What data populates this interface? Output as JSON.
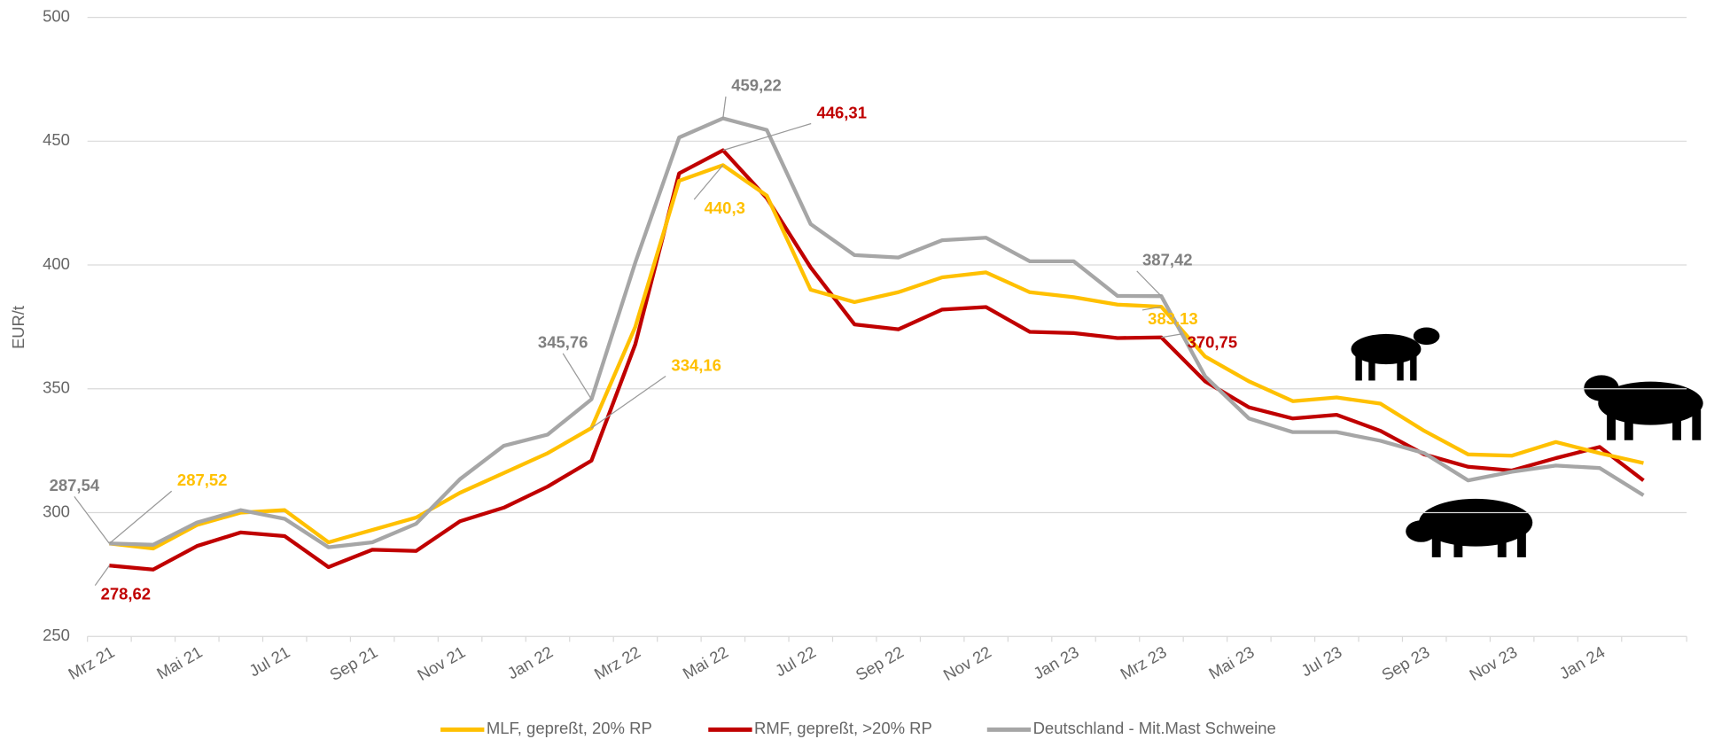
{
  "chart_data": {
    "type": "line",
    "y_label": "EUR/t",
    "categories": [
      "Mrz 21",
      null,
      "Mai 21",
      null,
      "Jul 21",
      null,
      "Sep 21",
      null,
      "Nov 21",
      null,
      "Jan 22",
      null,
      "Mrz 22",
      null,
      "Mai 22",
      null,
      "Jul 22",
      null,
      "Sep 22",
      null,
      "Nov 22",
      null,
      "Jan 23",
      null,
      "Mrz 23",
      null,
      "Mai 23",
      null,
      "Jul 23",
      null,
      "Sep 23",
      null,
      "Nov 23",
      null,
      "Jan 24",
      null
    ],
    "ylim": [
      250,
      500
    ],
    "yticks": [
      250,
      300,
      350,
      400,
      450,
      500
    ],
    "grid": true,
    "legend": "bottom",
    "series": [
      {
        "name": "MLF, gepreßt, 20% RP",
        "color": "#FFC000",
        "values": [
          287.52,
          285.5,
          295,
          300,
          301,
          288,
          293,
          298,
          308,
          316,
          324,
          334.16,
          375,
          434,
          440.3,
          428,
          390,
          385,
          389,
          395,
          397,
          389,
          387,
          384,
          383.13,
          363,
          353,
          345,
          346.5,
          344,
          333,
          323.5,
          323,
          328.5,
          324,
          320
        ],
        "value_labels": [
          "287,52",
          null,
          null,
          null,
          null,
          null,
          null,
          null,
          null,
          null,
          null,
          "334,16",
          null,
          null,
          "440,3",
          null,
          null,
          null,
          null,
          null,
          null,
          null,
          null,
          null,
          "383,13",
          null,
          null,
          null,
          null,
          null,
          null,
          null,
          null,
          null,
          null,
          null
        ]
      },
      {
        "name": "RMF, gepreßt, >20% RP",
        "color": "#C00000",
        "values": [
          278.62,
          277,
          286.5,
          292,
          290.5,
          278,
          285,
          284.5,
          296.5,
          302,
          310.5,
          321,
          368,
          437,
          446.31,
          427,
          399,
          376,
          374,
          382,
          383,
          373,
          372.5,
          370.5,
          370.75,
          353,
          342.5,
          338,
          339.5,
          333,
          323.5,
          318.5,
          317,
          322,
          326.5,
          313
        ],
        "value_labels": [
          "278,62",
          null,
          null,
          null,
          null,
          null,
          null,
          null,
          null,
          null,
          null,
          null,
          null,
          null,
          "446,31",
          null,
          null,
          null,
          null,
          null,
          null,
          null,
          null,
          null,
          "370,75",
          null,
          null,
          null,
          null,
          null,
          null,
          null,
          null,
          null,
          null,
          null
        ]
      },
      {
        "name": "Deutschland - Mit.Mast Schweine",
        "color": "#A6A6A6",
        "values": [
          287.54,
          287,
          296,
          301,
          297.5,
          286,
          288,
          295.5,
          313.5,
          327,
          331.5,
          345.76,
          401,
          451.5,
          459.22,
          454.5,
          416.5,
          404,
          403,
          410,
          411,
          401.5,
          401.5,
          387.5,
          387.42,
          355,
          338,
          332.5,
          332.5,
          329,
          324,
          313,
          316.5,
          319,
          318,
          307
        ],
        "value_labels": [
          "287,54",
          null,
          null,
          null,
          null,
          null,
          null,
          null,
          null,
          null,
          null,
          "345,76",
          null,
          null,
          "459,22",
          null,
          null,
          null,
          null,
          null,
          null,
          null,
          null,
          null,
          "387,42",
          null,
          null,
          null,
          null,
          null,
          null,
          null,
          null,
          null,
          null,
          null
        ]
      }
    ]
  }
}
